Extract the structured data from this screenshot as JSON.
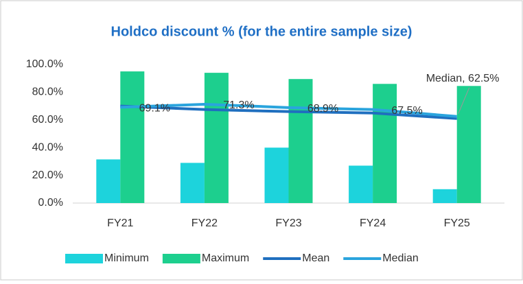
{
  "chart_data": {
    "type": "bar_line",
    "title": "Holdco discount % (for the entire sample size)",
    "categories": [
      "FY21",
      "FY22",
      "FY23",
      "FY24",
      "FY25"
    ],
    "series": [
      {
        "name": "Minimum",
        "type": "bar",
        "color": "#1dd3dc",
        "values": [
          31.5,
          29,
          40,
          27,
          10
        ]
      },
      {
        "name": "Maximum",
        "type": "bar",
        "color": "#1dcf8e",
        "values": [
          95,
          94,
          89.5,
          86,
          84.5
        ]
      },
      {
        "name": "Mean",
        "type": "line",
        "color": "#1f6fbf",
        "values": [
          70,
          67.5,
          66,
          65,
          61
        ]
      },
      {
        "name": "Median",
        "type": "line",
        "color": "#2aa4dd",
        "values": [
          69.1,
          71.3,
          68.9,
          67.5,
          62.5
        ],
        "value_labels": [
          "69.1%",
          "71.3%",
          "68.9%",
          "67.5%",
          "Median, 62.5%"
        ]
      }
    ],
    "ylim": [
      0,
      100
    ],
    "yticks": [
      {
        "value": 0,
        "label": "0.0%"
      },
      {
        "value": 20,
        "label": "20.0%"
      },
      {
        "value": 40,
        "label": "40.0%"
      },
      {
        "value": 60,
        "label": "60.0%"
      },
      {
        "value": 80,
        "label": "80.0%"
      },
      {
        "value": 100,
        "label": "100.0%"
      }
    ],
    "legend": "bottom"
  }
}
